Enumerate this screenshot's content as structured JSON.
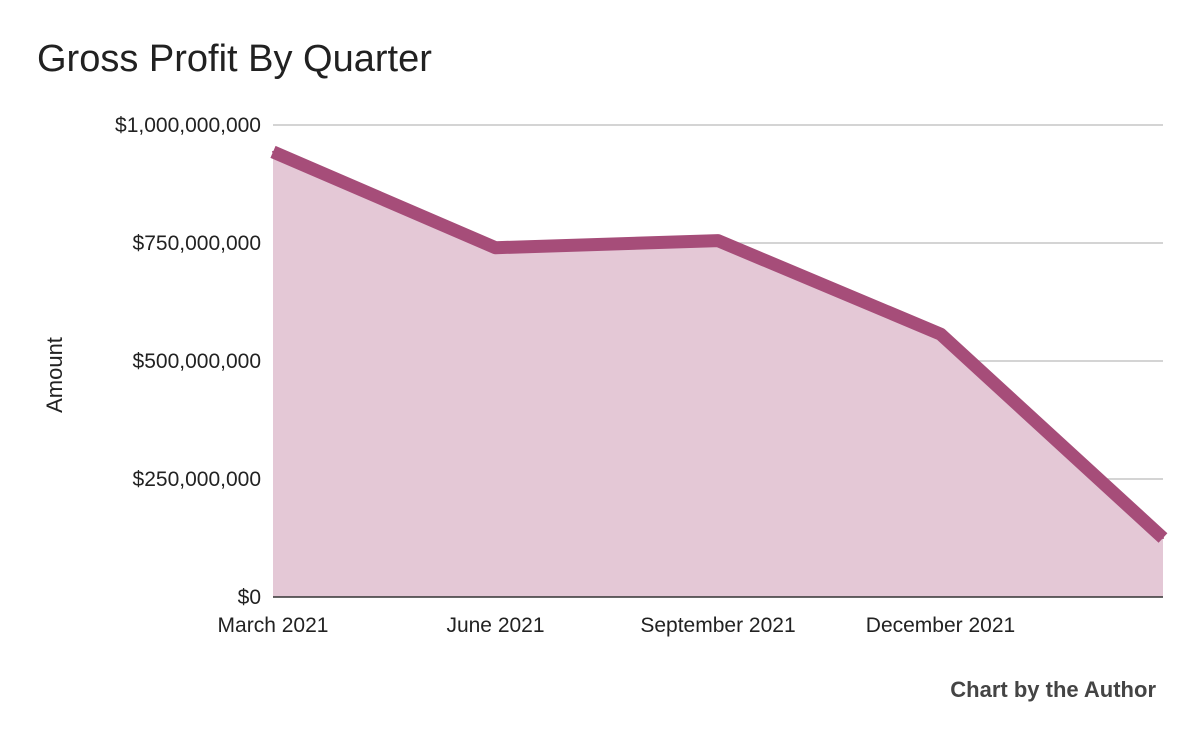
{
  "title": "Gross Profit By Quarter",
  "credit": "Chart by the Author",
  "chart_data": {
    "type": "area",
    "title": "Gross Profit By Quarter",
    "xlabel": "",
    "ylabel": "Amount",
    "x_tick_labels": [
      "March 2021",
      "June 2021",
      "September 2021",
      "December 2021",
      ""
    ],
    "y_tick_labels": [
      "$0",
      "$250,000,000",
      "$500,000,000",
      "$750,000,000",
      "$1,000,000,000"
    ],
    "y_ticks": [
      0,
      250000000,
      500000000,
      750000000,
      1000000000
    ],
    "ylim": [
      0,
      1000000000
    ],
    "grid": true,
    "legend": "none",
    "series": [
      {
        "values": [
          943000000,
          740000000,
          755000000,
          557000000,
          125000000
        ],
        "line_color": "#a64d79",
        "fill_color": "#e4c8d6"
      }
    ]
  }
}
